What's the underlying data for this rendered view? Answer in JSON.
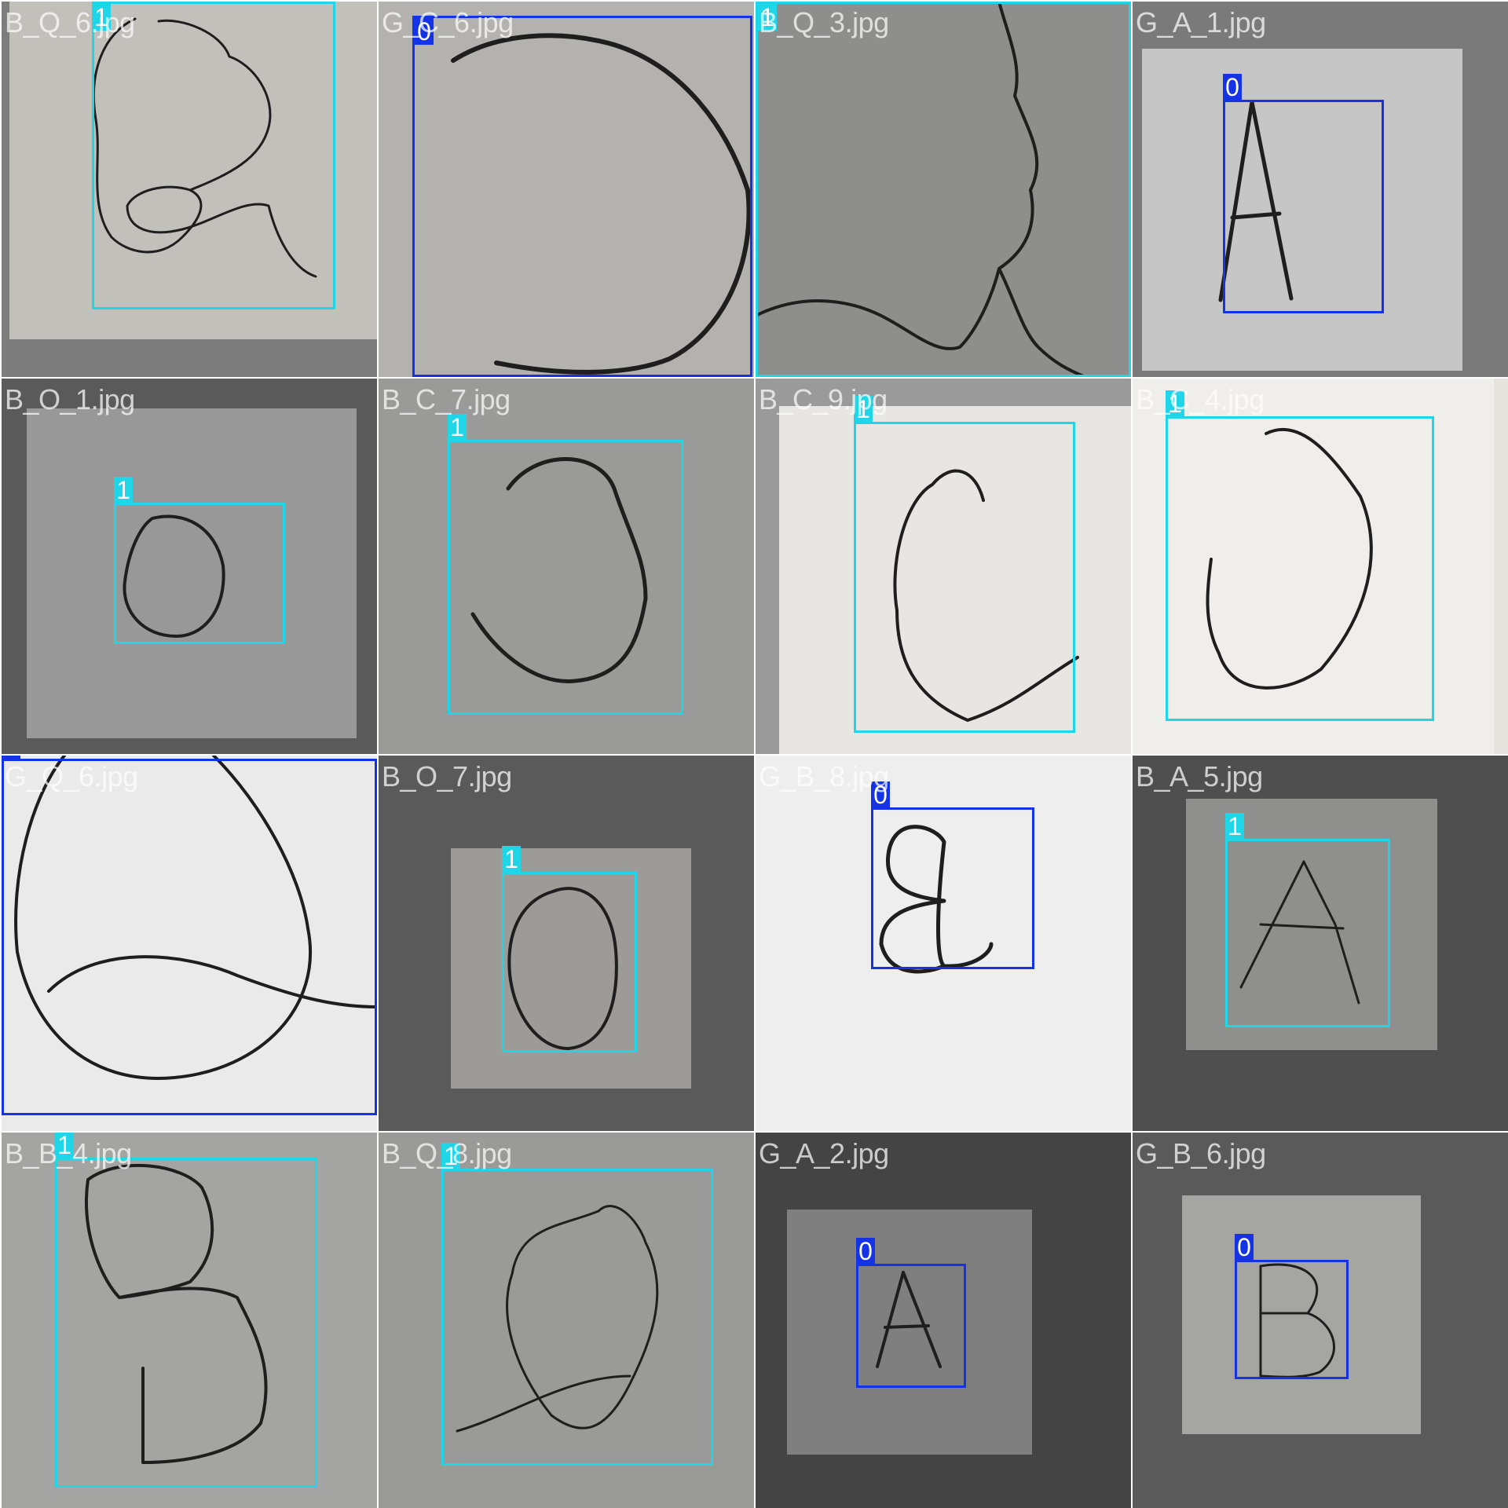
{
  "colors": {
    "class_1": "#1ed6e8",
    "class_0": "#1432e6"
  },
  "tiles": [
    {
      "name": "B_Q_6.jpg",
      "label": "1"
    },
    {
      "name": "G_C_6.jpg",
      "label": "0"
    },
    {
      "name": "B_Q_3.jpg",
      "label": "1"
    },
    {
      "name": "G_A_1.jpg",
      "label": "0"
    },
    {
      "name": "B_O_1.jpg",
      "label": "1"
    },
    {
      "name": "B_C_7.jpg",
      "label": "1"
    },
    {
      "name": "B_C_9.jpg",
      "label": "1"
    },
    {
      "name": "B_C_4.jpg",
      "label": "1"
    },
    {
      "name": "G_Q_6.jpg",
      "label": "0"
    },
    {
      "name": "B_O_7.jpg",
      "label": "1"
    },
    {
      "name": "G_B_8.jpg",
      "label": "0"
    },
    {
      "name": "B_A_5.jpg",
      "label": "1"
    },
    {
      "name": "B_B_4.jpg",
      "label": "1"
    },
    {
      "name": "B_Q_8.jpg",
      "label": "1"
    },
    {
      "name": "G_A_2.jpg",
      "label": "0"
    },
    {
      "name": "G_B_6.jpg",
      "label": "0"
    }
  ]
}
